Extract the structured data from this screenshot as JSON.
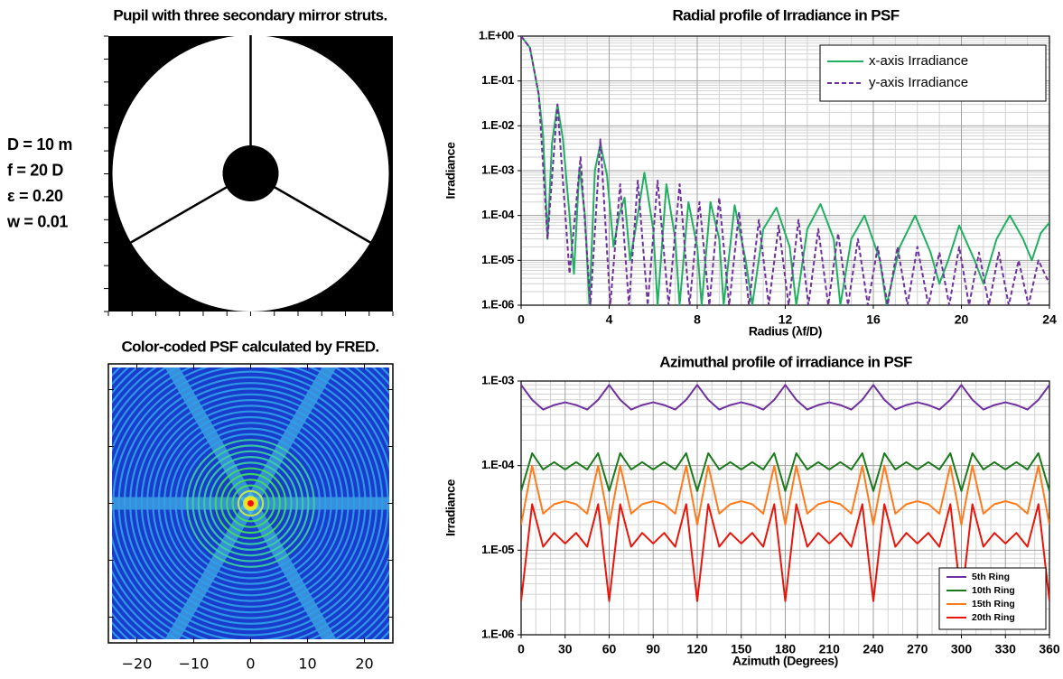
{
  "chart_data": [
    {
      "type": "pupil",
      "title": "Pupil with three secondary mirror struts.",
      "annotations": [
        "D = 10 m",
        "f = 20 D",
        "ε =  0.20",
        "w = 0.01"
      ]
    },
    {
      "type": "heatmap",
      "title": "Color-coded PSF calculated by FRED.",
      "xlim": [
        -25,
        25
      ],
      "xticks": [
        {
          "value": -20,
          "label": "−20"
        },
        {
          "value": -10,
          "label": "−10"
        },
        0,
        10,
        20
      ]
    },
    {
      "type": "line",
      "title": "Radial profile of Irradiance in PSF",
      "x_label": "Radius (λf/D)",
      "y_label": "Irradiance",
      "xlim": [
        0,
        24
      ],
      "xticks": [
        0,
        4,
        8,
        12,
        16,
        20,
        24
      ],
      "ylim": [
        1e-06,
        1
      ],
      "ylog": true,
      "grid": true,
      "legend": "upper right",
      "yticks": [
        {
          "value": 1,
          "label": "1.E+00"
        },
        {
          "value": 0.1,
          "label": "1.E-01"
        },
        {
          "value": 0.01,
          "label": "1.E-02"
        },
        {
          "value": 0.001,
          "label": "1.E-03"
        },
        {
          "value": 0.0001,
          "label": "1.E-04"
        },
        {
          "value": 1e-05,
          "label": "1.E-05"
        },
        {
          "value": 1e-06,
          "label": "1.E-06"
        }
      ],
      "series": [
        {
          "name": "x-axis Irradiance",
          "color": "#20b060",
          "linestyle": "solid",
          "x": [
            0,
            0.4,
            0.8,
            1.0,
            1.2,
            1.4,
            1.65,
            1.9,
            2.2,
            2.4,
            2.65,
            2.9,
            3.1,
            3.35,
            3.6,
            3.9,
            4.2,
            4.45,
            4.7,
            4.95,
            5.2,
            5.6,
            6.0,
            6.2,
            6.6,
            7.0,
            7.2,
            7.6,
            8.0,
            8.2,
            8.6,
            9.0,
            9.2,
            9.7,
            10.2,
            10.5,
            11.0,
            11.6,
            12.2,
            12.5,
            13.0,
            13.6,
            14.2,
            14.5,
            15.0,
            15.6,
            16.3,
            16.6,
            17.2,
            17.9,
            18.6,
            19.0,
            19.4,
            19.9,
            20.6,
            21.0,
            21.6,
            22.2,
            22.8,
            23.2,
            23.6,
            24
          ],
          "values": [
            1,
            0.55,
            0.05,
            0.006,
            3e-05,
            0.004,
            0.03,
            0.005,
            0.0001,
            5e-06,
            0.0012,
            0.0001,
            1e-06,
            0.001,
            0.004,
            0.0008,
            2e-05,
            0.0001,
            0.00025,
            1e-05,
            5e-05,
            0.0009,
            5e-05,
            1e-06,
            0.0005,
            3e-05,
            1e-06,
            0.0002,
            2e-05,
            1e-06,
            0.0002,
            3e-05,
            1e-06,
            0.00017,
            1e-05,
            1e-06,
            5e-05,
            0.00015,
            2e-05,
            1e-06,
            5e-05,
            0.00018,
            3e-05,
            1e-06,
            3e-05,
            0.0001,
            1e-05,
            1e-06,
            2e-05,
            0.0001,
            1.5e-05,
            3e-06,
            1e-05,
            6e-05,
            1e-05,
            3e-06,
            3e-05,
            0.0001,
            3e-05,
            1e-05,
            4e-05,
            7e-05
          ]
        },
        {
          "name": "y-axis Irradiance",
          "color": "#7030a0",
          "linestyle": "dashed",
          "x": [
            0,
            0.4,
            0.8,
            1.2,
            1.65,
            2.2,
            2.7,
            3.15,
            3.6,
            4.05,
            4.5,
            4.9,
            5.3,
            5.75,
            6.2,
            6.7,
            7.2,
            7.65,
            8.1,
            8.55,
            9.0,
            9.45,
            9.9,
            10.35,
            10.8,
            11.25,
            11.7,
            12.15,
            12.6,
            13.05,
            13.5,
            13.95,
            14.4,
            14.85,
            15.3,
            15.75,
            16.2,
            16.65,
            17.1,
            17.55,
            18.0,
            18.5,
            19.0,
            19.45,
            19.9,
            20.35,
            20.8,
            21.25,
            21.7,
            22.15,
            22.6,
            23.05,
            23.5,
            24
          ],
          "values": [
            1,
            0.55,
            0.05,
            3e-05,
            0.03,
            5e-06,
            0.002,
            1e-06,
            0.005,
            1e-06,
            0.0005,
            1e-06,
            0.0006,
            1e-06,
            0.0006,
            1e-06,
            0.0005,
            1e-06,
            0.0002,
            1e-06,
            0.00025,
            1e-06,
            0.00012,
            1e-06,
            8e-05,
            1e-06,
            6e-05,
            1e-06,
            8e-05,
            1e-06,
            5e-05,
            1e-06,
            4e-05,
            1e-06,
            3e-05,
            1e-06,
            2e-05,
            1e-06,
            2e-05,
            1e-06,
            2e-05,
            1e-06,
            1.5e-05,
            1e-06,
            2e-05,
            1e-06,
            1.5e-05,
            1e-06,
            1.5e-05,
            1e-06,
            1e-05,
            1e-06,
            1e-05,
            3e-06
          ]
        }
      ]
    },
    {
      "type": "line",
      "title": "Azimuthal profile of irradiance in PSF",
      "x_label": "Azimuth (Degrees)",
      "y_label": "Irradiance",
      "xlim": [
        0,
        360
      ],
      "xticks": [
        0,
        30,
        60,
        90,
        120,
        150,
        180,
        210,
        240,
        270,
        300,
        330,
        360
      ],
      "ylim": [
        1e-06,
        0.001
      ],
      "ylog": true,
      "grid": true,
      "legend": "lower right",
      "yticks": [
        {
          "value": 0.001,
          "label": "1.E-03"
        },
        {
          "value": 0.0001,
          "label": "1.E-04"
        },
        {
          "value": 1e-05,
          "label": "1.E-05"
        },
        {
          "value": 1e-06,
          "label": "1.E-06"
        }
      ],
      "series": [
        {
          "name": "5th Ring",
          "color": "#7030a0",
          "linestyle": "solid",
          "x": [
            0,
            7.5,
            15,
            22.5,
            30,
            37.5,
            45,
            52.5,
            60,
            67.5,
            75,
            82.5,
            90,
            97.5,
            105,
            112.5,
            120,
            127.5,
            135,
            142.5,
            150,
            157.5,
            165,
            172.5,
            180,
            187.5,
            195,
            202.5,
            210,
            217.5,
            225,
            232.5,
            240,
            247.5,
            255,
            262.5,
            270,
            277.5,
            285,
            292.5,
            300,
            307.5,
            315,
            322.5,
            330,
            337.5,
            345,
            352.5,
            360
          ],
          "values": [
            0.0009,
            0.0006,
            0.00046,
            0.00052,
            0.00056,
            0.00052,
            0.00046,
            0.0006,
            0.0009,
            0.0006,
            0.00046,
            0.00052,
            0.00056,
            0.00052,
            0.00046,
            0.0006,
            0.0009,
            0.0006,
            0.00046,
            0.00052,
            0.00056,
            0.00052,
            0.00046,
            0.0006,
            0.0009,
            0.0006,
            0.00046,
            0.00052,
            0.00056,
            0.00052,
            0.00046,
            0.0006,
            0.0009,
            0.0006,
            0.00046,
            0.00052,
            0.00056,
            0.00052,
            0.00046,
            0.0006,
            0.0009,
            0.0006,
            0.00046,
            0.00052,
            0.00056,
            0.00052,
            0.00046,
            0.0006,
            0.0009
          ]
        },
        {
          "name": "10th Ring",
          "color": "#1a7a1a",
          "linestyle": "solid",
          "x": [
            0,
            7.5,
            15,
            22.5,
            30,
            37.5,
            45,
            52.5,
            60,
            67.5,
            75,
            82.5,
            90,
            97.5,
            105,
            112.5,
            120,
            127.5,
            135,
            142.5,
            150,
            157.5,
            165,
            172.5,
            180,
            187.5,
            195,
            202.5,
            210,
            217.5,
            225,
            232.5,
            240,
            247.5,
            255,
            262.5,
            270,
            277.5,
            285,
            292.5,
            300,
            307.5,
            315,
            322.5,
            330,
            337.5,
            345,
            352.5,
            360
          ],
          "values": [
            5e-05,
            0.00014,
            9e-05,
            0.00011,
            9e-05,
            0.00011,
            9e-05,
            0.00014,
            5e-05,
            0.00014,
            9e-05,
            0.00011,
            9e-05,
            0.00011,
            9e-05,
            0.00014,
            5e-05,
            0.00014,
            9e-05,
            0.00011,
            9e-05,
            0.00011,
            9e-05,
            0.00014,
            5e-05,
            0.00014,
            9e-05,
            0.00011,
            9e-05,
            0.00011,
            9e-05,
            0.00014,
            5e-05,
            0.00014,
            9e-05,
            0.00011,
            9e-05,
            0.00011,
            9e-05,
            0.00014,
            5e-05,
            0.00014,
            9e-05,
            0.00011,
            9e-05,
            0.00011,
            9e-05,
            0.00014,
            5e-05
          ]
        },
        {
          "name": "15th Ring",
          "color": "#ff7a1a",
          "linestyle": "solid",
          "x": [
            0,
            7.5,
            15,
            22.5,
            30,
            37.5,
            45,
            52.5,
            60,
            67.5,
            75,
            82.5,
            90,
            97.5,
            105,
            112.5,
            120,
            127.5,
            135,
            142.5,
            150,
            157.5,
            165,
            172.5,
            180,
            187.5,
            195,
            202.5,
            210,
            217.5,
            225,
            232.5,
            240,
            247.5,
            255,
            262.5,
            270,
            277.5,
            285,
            292.5,
            300,
            307.5,
            315,
            322.5,
            330,
            337.5,
            345,
            352.5,
            360
          ],
          "values": [
            2e-05,
            0.0001,
            2.7e-05,
            3.5e-05,
            3.8e-05,
            3.5e-05,
            2.7e-05,
            0.0001,
            2e-05,
            0.0001,
            2.7e-05,
            3.5e-05,
            3.8e-05,
            3.5e-05,
            2.7e-05,
            0.0001,
            2e-05,
            0.0001,
            2.7e-05,
            3.5e-05,
            3.8e-05,
            3.5e-05,
            2.7e-05,
            0.0001,
            2e-05,
            0.0001,
            2.7e-05,
            3.5e-05,
            3.8e-05,
            3.5e-05,
            2.7e-05,
            0.0001,
            2e-05,
            0.0001,
            2.7e-05,
            3.5e-05,
            3.8e-05,
            3.5e-05,
            2.7e-05,
            0.0001,
            2e-05,
            0.0001,
            2.7e-05,
            3.5e-05,
            3.8e-05,
            3.5e-05,
            2.7e-05,
            0.0001,
            2e-05
          ]
        },
        {
          "name": "20th Ring",
          "color": "#e8150a",
          "linestyle": "solid",
          "x": [
            0,
            7.5,
            15,
            22.5,
            30,
            37.5,
            45,
            52.5,
            60,
            67.5,
            75,
            82.5,
            90,
            97.5,
            105,
            112.5,
            120,
            127.5,
            135,
            142.5,
            150,
            157.5,
            165,
            172.5,
            180,
            187.5,
            195,
            202.5,
            210,
            217.5,
            225,
            232.5,
            240,
            247.5,
            255,
            262.5,
            270,
            277.5,
            285,
            292.5,
            300,
            307.5,
            315,
            322.5,
            330,
            337.5,
            345,
            352.5,
            360
          ],
          "values": [
            2.5e-06,
            3.5e-05,
            1.1e-05,
            1.6e-05,
            1.2e-05,
            1.6e-05,
            1.1e-05,
            3.5e-05,
            2.5e-06,
            3.5e-05,
            1.1e-05,
            1.6e-05,
            1.2e-05,
            1.6e-05,
            1.1e-05,
            3.5e-05,
            2.5e-06,
            3.5e-05,
            1.1e-05,
            1.6e-05,
            1.2e-05,
            1.6e-05,
            1.1e-05,
            3.5e-05,
            2.5e-06,
            3.5e-05,
            1.1e-05,
            1.6e-05,
            1.2e-05,
            1.6e-05,
            1.1e-05,
            3.5e-05,
            2.5e-06,
            3.5e-05,
            1.1e-05,
            1.6e-05,
            1.2e-05,
            1.6e-05,
            1.1e-05,
            3.5e-05,
            2.5e-06,
            3.5e-05,
            1.1e-05,
            1.6e-05,
            1.2e-05,
            1.6e-05,
            1.1e-05,
            3.5e-05,
            2.5e-06
          ]
        }
      ]
    }
  ]
}
